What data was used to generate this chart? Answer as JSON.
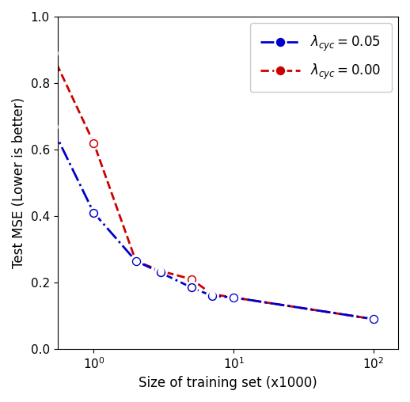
{
  "title": "",
  "xlabel": "Size of training set (x1000)",
  "ylabel": "Test MSE (Lower is better)",
  "blue_x": [
    0.5,
    1.0,
    2.0,
    3.0,
    5.0,
    7.0,
    10.0,
    100.0
  ],
  "blue_y": [
    0.67,
    0.41,
    0.265,
    0.23,
    0.185,
    0.16,
    0.155,
    0.09
  ],
  "red_x": [
    0.5,
    1.0,
    2.0,
    3.0,
    5.0,
    7.0,
    10.0,
    100.0
  ],
  "red_y": [
    0.89,
    0.62,
    0.265,
    0.235,
    0.21,
    0.165,
    0.155,
    0.09
  ],
  "blue_color": "#0000CC",
  "red_color": "#CC0000",
  "blue_label": "$\\lambda_{cyc} = 0.05$",
  "red_label": "$\\lambda_{cyc} = 0.00$",
  "ylim": [
    0.0,
    1.0
  ],
  "xlim_log": [
    0.55,
    150
  ],
  "marker_size": 10,
  "marker_size_inner": 6,
  "line_width": 2.0,
  "legend_fontsize": 12,
  "axis_fontsize": 12,
  "tick_fontsize": 11
}
